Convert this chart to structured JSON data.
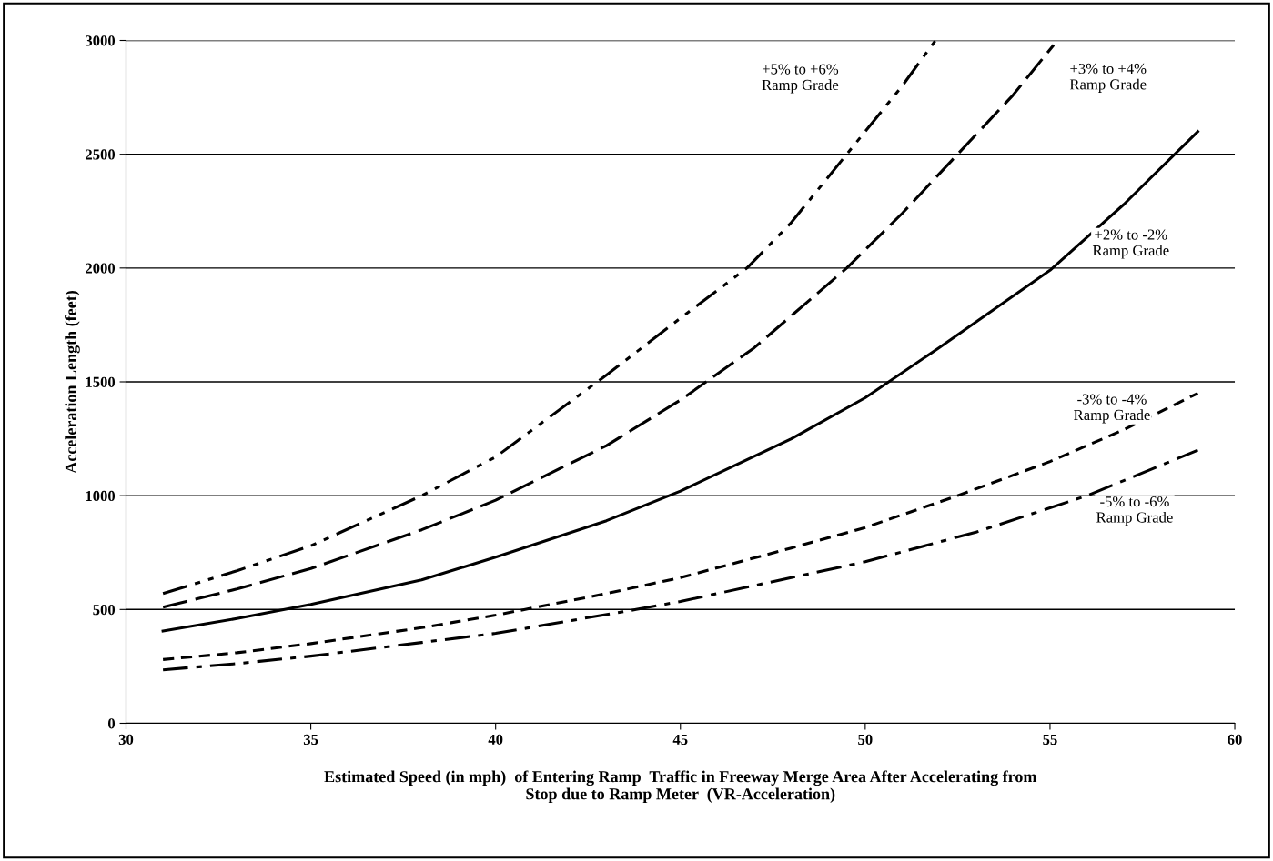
{
  "chart_data": {
    "type": "line",
    "xlabel": "Estimated Speed (in mph)  of Entering Ramp  Traffic in Freeway Merge Area After Accelerating from\nStop due to Ramp Meter  (VR-Acceleration)",
    "ylabel": "Acceleration Length (feet)",
    "series": [
      {
        "name": "+5% to +6%\nRamp Grade",
        "color": "#000000",
        "line_style": "dashdotdot",
        "x": [
          31,
          33,
          35,
          38,
          40,
          43,
          45,
          46.8,
          48,
          49.5,
          51,
          51.9
        ],
        "values": [
          570,
          670,
          780,
          1000,
          1170,
          1530,
          1780,
          2000,
          2200,
          2500,
          2800,
          3000
        ]
      },
      {
        "name": "+3% to +4%\nRamp Grade",
        "color": "#000000",
        "line_style": "dashed",
        "x": [
          31,
          33,
          35,
          38,
          40,
          43,
          45,
          47,
          49.5,
          51,
          52.5,
          54,
          55.1
        ],
        "values": [
          510,
          590,
          680,
          850,
          980,
          1220,
          1420,
          1650,
          2000,
          2240,
          2500,
          2760,
          2980
        ]
      },
      {
        "name": "+2% to -2%\nRamp Grade",
        "color": "#000000",
        "line_style": "solid",
        "x": [
          31,
          33,
          35,
          38,
          40,
          43,
          45,
          48,
          50,
          52,
          55,
          57,
          59
        ],
        "values": [
          405,
          460,
          522,
          630,
          730,
          890,
          1020,
          1250,
          1430,
          1650,
          1990,
          2280,
          2600
        ]
      },
      {
        "name": "-3% to -4%\nRamp Grade",
        "color": "#000000",
        "line_style": "shortdash",
        "x": [
          31,
          33,
          35,
          38,
          40,
          43,
          45,
          48,
          50,
          52.5,
          55,
          57,
          59
        ],
        "values": [
          280,
          310,
          350,
          420,
          475,
          570,
          640,
          770,
          860,
          1000,
          1150,
          1290,
          1450
        ]
      },
      {
        "name": "-5% to -6%\nRamp Grade",
        "color": "#000000",
        "line_style": "dashdot",
        "x": [
          31,
          33,
          35,
          38,
          40,
          43.8,
          45,
          48,
          50,
          53,
          56,
          59
        ],
        "values": [
          235,
          262,
          295,
          355,
          395,
          500,
          535,
          640,
          710,
          840,
          1000,
          1200
        ]
      }
    ],
    "xlim": [
      30,
      60
    ],
    "xticks": [
      30,
      35,
      40,
      45,
      50,
      55,
      60
    ],
    "ylim": [
      0,
      3000
    ],
    "yticks": [
      0,
      500,
      1000,
      1500,
      2000,
      2500,
      3000
    ],
    "grid": "y",
    "legend": false,
    "marker": "none"
  }
}
